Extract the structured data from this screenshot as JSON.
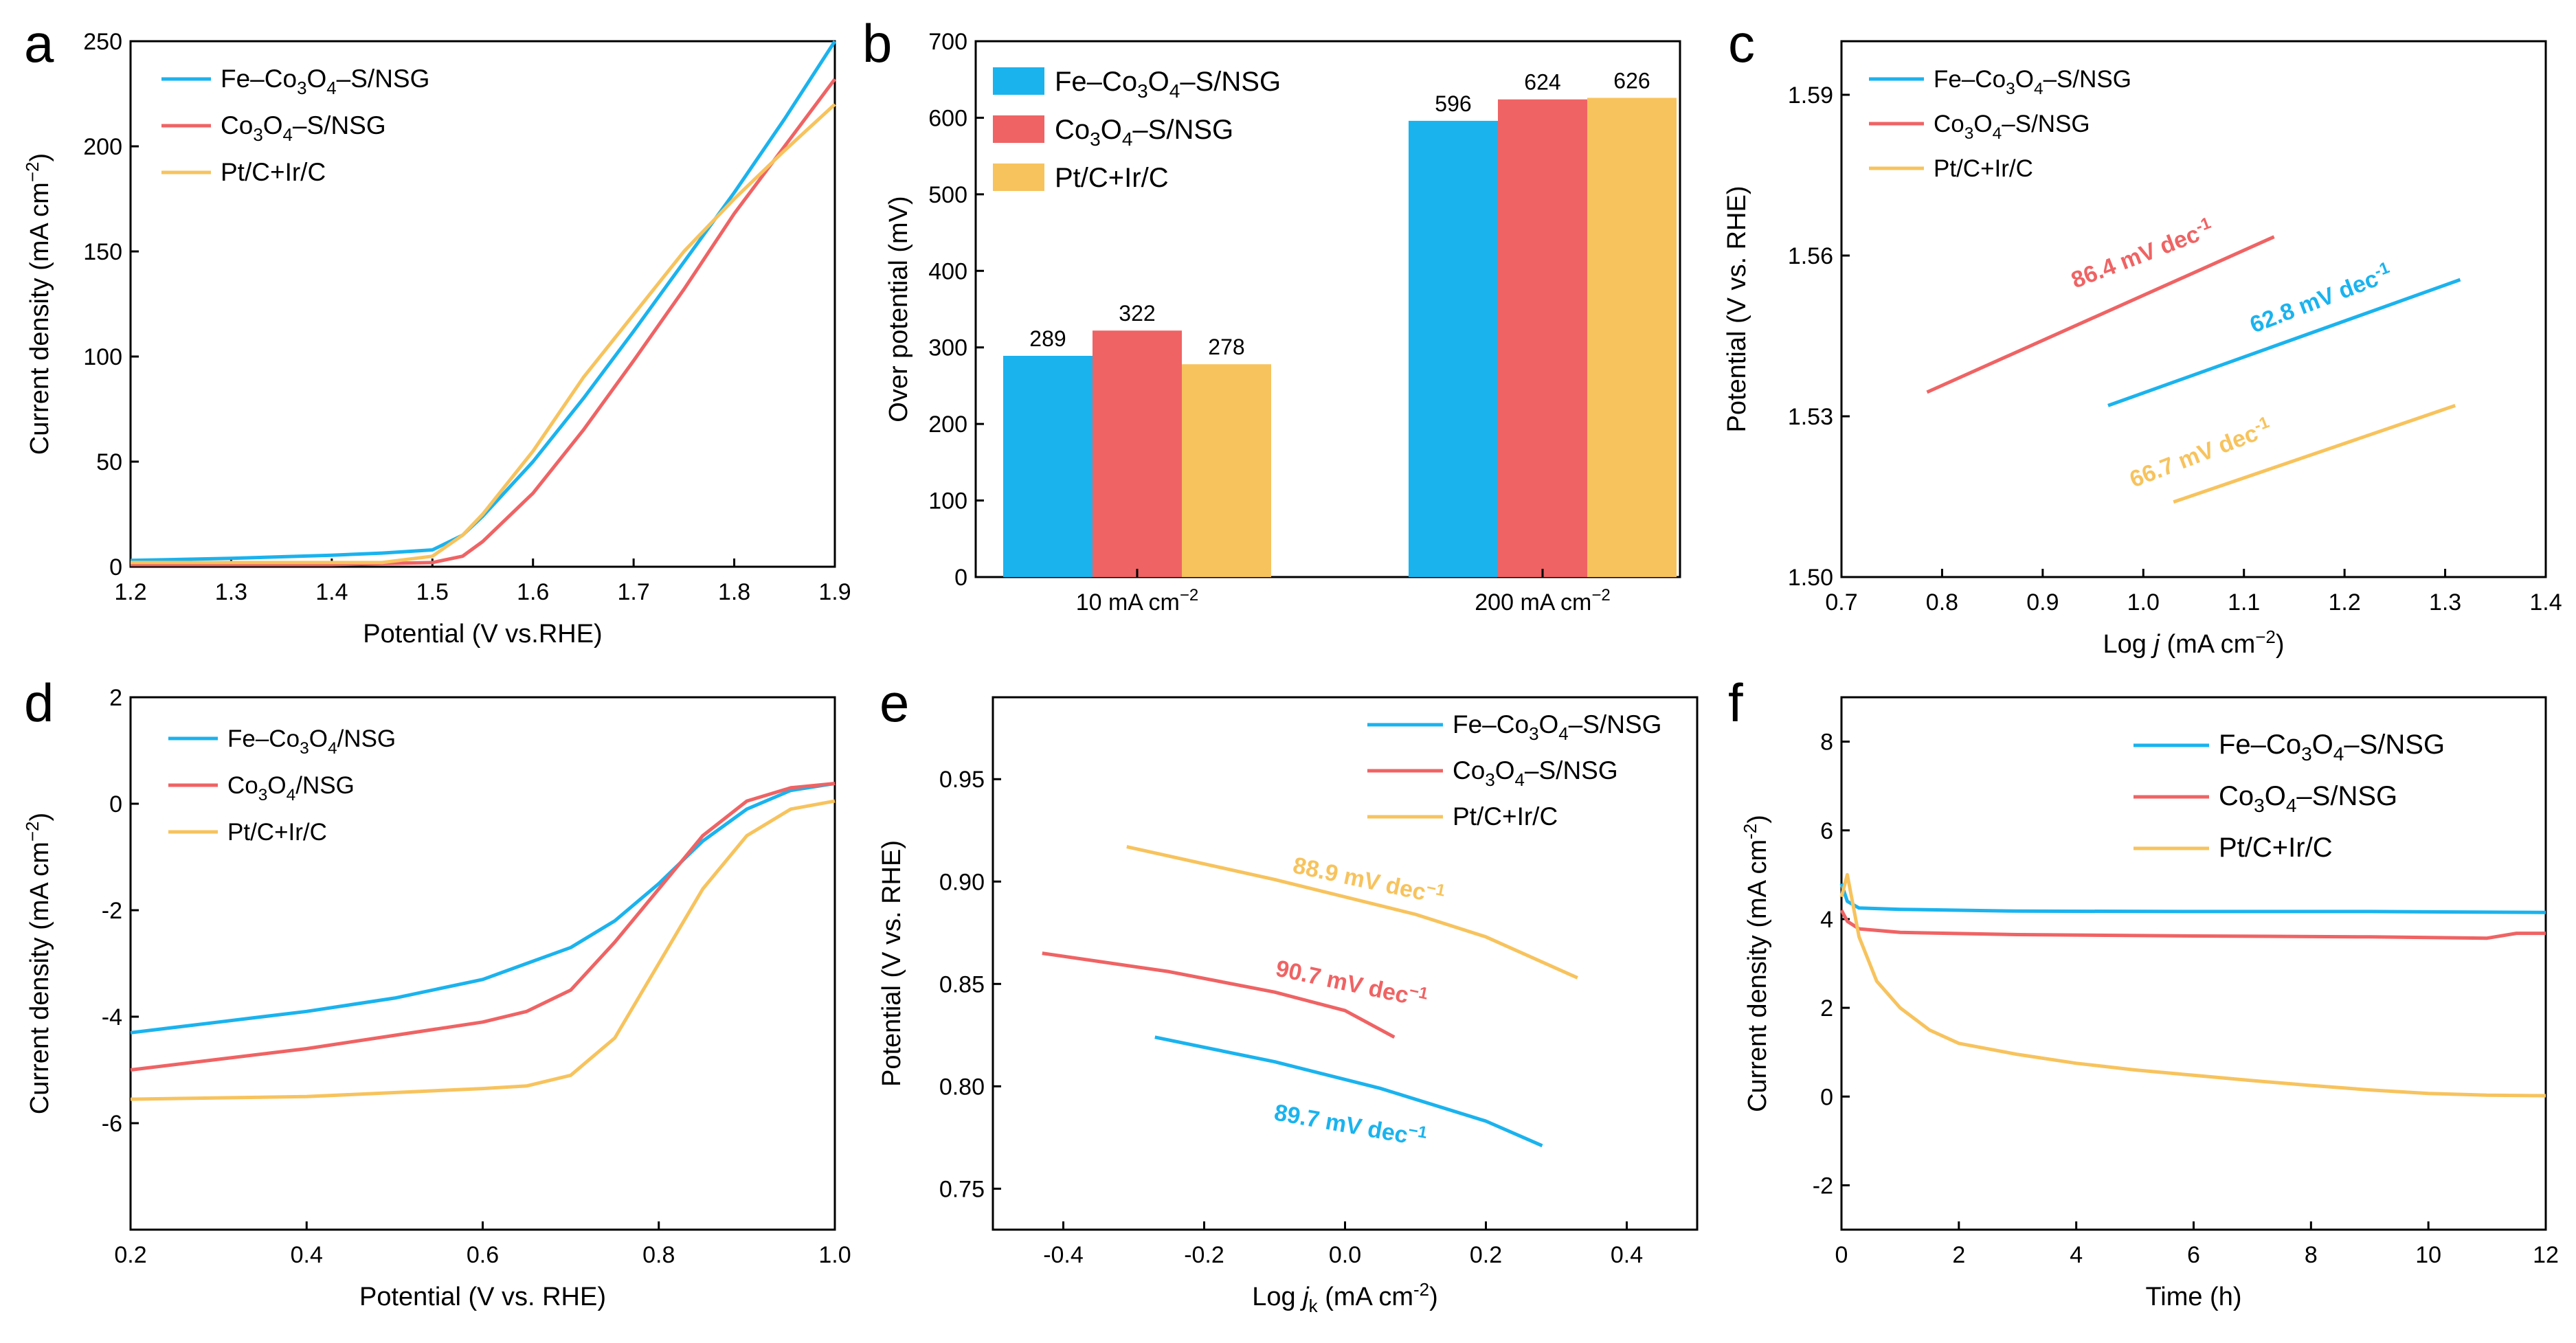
{
  "colors": {
    "fe": "#1ab3ee",
    "co": "#ef6364",
    "pt": "#f7c35d",
    "axis": "#000000"
  },
  "chart_data": [
    {
      "panel": "a",
      "type": "line",
      "xlabel": "Potential (V vs.RHE)",
      "ylabel": "Current density (mA cm",
      "ylabel_sup": "−2",
      "ylabel_end": ")",
      "xlim": [
        1.2,
        1.9
      ],
      "ylim": [
        0,
        250
      ],
      "xticks": [
        "1.2",
        "1.3",
        "1.4",
        "1.5",
        "1.6",
        "1.7",
        "1.8",
        "1.9"
      ],
      "yticks": [
        "0",
        "50",
        "100",
        "150",
        "200",
        "250"
      ],
      "legend_position": "top-left",
      "series": [
        {
          "name": "Fe–Co3O4–S/NSG",
          "color": "fe",
          "label": {
            "p": "Fe–Co",
            "s1": "3",
            "m": "O",
            "s2": "4",
            "e": "–S/NSG"
          },
          "points": [
            [
              1.2,
              3
            ],
            [
              1.3,
              4
            ],
            [
              1.4,
              5.5
            ],
            [
              1.45,
              6.5
            ],
            [
              1.5,
              8
            ],
            [
              1.53,
              15
            ],
            [
              1.55,
              24
            ],
            [
              1.6,
              50
            ],
            [
              1.65,
              80
            ],
            [
              1.7,
              112
            ],
            [
              1.75,
              145
            ],
            [
              1.8,
              178
            ],
            [
              1.85,
              213
            ],
            [
              1.9,
              250
            ]
          ]
        },
        {
          "name": "Co3O4–S/NSG",
          "color": "co",
          "label": {
            "p": "Co",
            "s1": "3",
            "m": "O",
            "s2": "4",
            "e": "–S/NSG"
          },
          "points": [
            [
              1.2,
              1
            ],
            [
              1.3,
              1
            ],
            [
              1.4,
              1
            ],
            [
              1.45,
              1.5
            ],
            [
              1.5,
              2
            ],
            [
              1.53,
              5
            ],
            [
              1.55,
              12
            ],
            [
              1.6,
              35
            ],
            [
              1.65,
              65
            ],
            [
              1.7,
              98
            ],
            [
              1.75,
              132
            ],
            [
              1.8,
              168
            ],
            [
              1.85,
              200
            ],
            [
              1.9,
              232
            ]
          ]
        },
        {
          "name": "Pt/C+Ir/C",
          "color": "pt",
          "label": {
            "p": "Pt/C+Ir/C",
            "s1": "",
            "m": "",
            "s2": "",
            "e": ""
          },
          "points": [
            [
              1.2,
              2
            ],
            [
              1.3,
              2
            ],
            [
              1.4,
              2
            ],
            [
              1.45,
              2
            ],
            [
              1.5,
              5
            ],
            [
              1.53,
              15
            ],
            [
              1.55,
              25
            ],
            [
              1.6,
              55
            ],
            [
              1.65,
              90
            ],
            [
              1.7,
              120
            ],
            [
              1.75,
              150
            ],
            [
              1.8,
              175
            ],
            [
              1.85,
              198
            ],
            [
              1.9,
              220
            ]
          ]
        }
      ]
    },
    {
      "panel": "b",
      "type": "bar",
      "xlabel": "",
      "ylabel": "Over potential (mV)",
      "ylim": [
        0,
        700
      ],
      "yticks": [
        "0",
        "100",
        "200",
        "300",
        "400",
        "500",
        "600",
        "700"
      ],
      "categories": [
        {
          "p": "10 mA cm",
          "sup": "−2"
        },
        {
          "p": "200 mA cm",
          "sup": "−2"
        }
      ],
      "legend_position": "top-left",
      "series": [
        {
          "name": "Fe–Co3O4–S/NSG",
          "color": "fe",
          "label": {
            "p": "Fe–Co",
            "s1": "3",
            "m": "O",
            "s2": "4",
            "e": "–S/NSG"
          },
          "values": [
            289,
            596
          ],
          "value_labels": [
            "289",
            "596"
          ]
        },
        {
          "name": "Co3O4–S/NSG",
          "color": "co",
          "label": {
            "p": "Co",
            "s1": "3",
            "m": "O",
            "s2": "4",
            "e": "–S/NSG"
          },
          "values": [
            322,
            624
          ],
          "value_labels": [
            "322",
            "624"
          ]
        },
        {
          "name": "Pt/C+Ir/C",
          "color": "pt",
          "label": {
            "p": "Pt/C+Ir/C",
            "s1": "",
            "m": "",
            "s2": "",
            "e": ""
          },
          "values": [
            278,
            626
          ],
          "value_labels": [
            "278",
            "626"
          ]
        }
      ]
    },
    {
      "panel": "c",
      "type": "line",
      "xlabel": "Log ",
      "xlabel_italic": "j",
      "xlabel_end": " (mA cm",
      "xlabel_sup": "−2",
      "xlabel_close": ")",
      "ylabel": "Potential (V vs. RHE)",
      "xlim": [
        0.7,
        1.4
      ],
      "ylim": [
        1.5,
        1.6
      ],
      "xticks": [
        "0.7",
        "0.8",
        "0.9",
        "1.0",
        "1.1",
        "1.2",
        "1.3",
        "1.4"
      ],
      "yticks": [
        "1.50",
        "1.53",
        "1.56",
        "1.59"
      ],
      "legend_position": "top-left",
      "series": [
        {
          "name": "Fe–Co3O4–S/NSG",
          "color": "fe",
          "label": {
            "p": "Fe–Co",
            "s1": "3",
            "m": "O",
            "s2": "4",
            "e": "–S/NSG"
          },
          "points": [
            [
              0.965,
              1.532
            ],
            [
              1.315,
              1.5555
            ]
          ],
          "slope": {
            "p": "62.8 mV dec",
            "sup": "-1"
          }
        },
        {
          "name": "Co3O4–S/NSG",
          "color": "co",
          "label": {
            "p": "Co",
            "s1": "3",
            "m": "O",
            "s2": "4",
            "e": "–S/NSG"
          },
          "points": [
            [
              0.785,
              1.5345
            ],
            [
              1.13,
              1.5635
            ]
          ],
          "slope": {
            "p": "86.4 mV dec",
            "sup": "-1"
          }
        },
        {
          "name": "Pt/C+Ir/C",
          "color": "pt",
          "label": {
            "p": "Pt/C+Ir/C",
            "s1": "",
            "m": "",
            "s2": "",
            "e": ""
          },
          "points": [
            [
              1.03,
              1.514
            ],
            [
              1.31,
              1.532
            ]
          ],
          "slope": {
            "p": "66.7 mV dec",
            "sup": "-1"
          }
        }
      ]
    },
    {
      "panel": "d",
      "type": "line",
      "xlabel": "Potential (V vs. RHE)",
      "ylabel": "Current density (mA cm",
      "ylabel_sup": "−2",
      "ylabel_end": ")",
      "xlim": [
        0.2,
        1.0
      ],
      "ylim": [
        -8,
        2
      ],
      "xticks": [
        "0.2",
        "0.4",
        "0.6",
        "0.8",
        "1.0"
      ],
      "yticks": [
        "-6",
        "-4",
        "-2",
        "0",
        "2"
      ],
      "legend_position": "top-left",
      "series": [
        {
          "name": "Fe–Co3O4/NSG",
          "color": "fe",
          "label": {
            "p": "Fe–Co",
            "s1": "3",
            "m": "O",
            "s2": "4",
            "e": "/NSG"
          },
          "points": [
            [
              0.2,
              -4.3
            ],
            [
              0.3,
              -4.1
            ],
            [
              0.4,
              -3.9
            ],
            [
              0.5,
              -3.65
            ],
            [
              0.6,
              -3.3
            ],
            [
              0.65,
              -3.0
            ],
            [
              0.7,
              -2.7
            ],
            [
              0.75,
              -2.2
            ],
            [
              0.8,
              -1.5
            ],
            [
              0.85,
              -0.7
            ],
            [
              0.9,
              -0.1
            ],
            [
              0.95,
              0.25
            ],
            [
              1.0,
              0.38
            ]
          ]
        },
        {
          "name": "Co3O4/NSG",
          "color": "co",
          "label": {
            "p": "Co",
            "s1": "3",
            "m": "O",
            "s2": "4",
            "e": "/NSG"
          },
          "points": [
            [
              0.2,
              -5.0
            ],
            [
              0.3,
              -4.8
            ],
            [
              0.4,
              -4.6
            ],
            [
              0.5,
              -4.35
            ],
            [
              0.6,
              -4.1
            ],
            [
              0.65,
              -3.9
            ],
            [
              0.7,
              -3.5
            ],
            [
              0.75,
              -2.6
            ],
            [
              0.8,
              -1.6
            ],
            [
              0.85,
              -0.6
            ],
            [
              0.9,
              0.05
            ],
            [
              0.95,
              0.3
            ],
            [
              1.0,
              0.38
            ]
          ]
        },
        {
          "name": "Pt/C+Ir/C",
          "color": "pt",
          "label": {
            "p": "Pt/C+Ir/C",
            "s1": "",
            "m": "",
            "s2": "",
            "e": ""
          },
          "points": [
            [
              0.2,
              -5.55
            ],
            [
              0.4,
              -5.5
            ],
            [
              0.6,
              -5.35
            ],
            [
              0.65,
              -5.3
            ],
            [
              0.7,
              -5.1
            ],
            [
              0.75,
              -4.4
            ],
            [
              0.8,
              -3.0
            ],
            [
              0.85,
              -1.6
            ],
            [
              0.9,
              -0.6
            ],
            [
              0.95,
              -0.1
            ],
            [
              1.0,
              0.05
            ]
          ]
        }
      ]
    },
    {
      "panel": "e",
      "type": "line",
      "xlabel": "Log ",
      "xlabel_italic": "j",
      "xlabel_sub": "k",
      "xlabel_end": " (mA cm",
      "xlabel_sup": "-2",
      "xlabel_close": ")",
      "ylabel": "Potential (V vs. RHE)",
      "xlim": [
        -0.5,
        0.5
      ],
      "ylim": [
        0.73,
        0.99
      ],
      "xticks": [
        "-0.4",
        "-0.2",
        "0.0",
        "0.2",
        "0.4"
      ],
      "yticks": [
        "0.75",
        "0.80",
        "0.85",
        "0.90",
        "0.95"
      ],
      "legend_position": "top-right",
      "series": [
        {
          "name": "Fe–Co3O4–S/NSG",
          "color": "fe",
          "label": {
            "p": "Fe–Co",
            "s1": "3",
            "m": "O",
            "s2": "4",
            "e": "–S/NSG"
          },
          "points": [
            [
              -0.27,
              0.824
            ],
            [
              -0.1,
              0.812
            ],
            [
              0.05,
              0.799
            ],
            [
              0.2,
              0.783
            ],
            [
              0.28,
              0.771
            ]
          ],
          "slope": {
            "p": "89.7 mV dec",
            "sup": "−1"
          }
        },
        {
          "name": "Co3O4–S/NSG",
          "color": "co",
          "label": {
            "p": "Co",
            "s1": "3",
            "m": "O",
            "s2": "4",
            "e": "–S/NSG"
          },
          "points": [
            [
              -0.43,
              0.865
            ],
            [
              -0.25,
              0.856
            ],
            [
              -0.1,
              0.846
            ],
            [
              0.0,
              0.837
            ],
            [
              0.07,
              0.824
            ]
          ],
          "slope": {
            "p": "90.7 mV dec",
            "sup": "−1"
          }
        },
        {
          "name": "Pt/C+Ir/C",
          "color": "pt",
          "label": {
            "p": "Pt/C+Ir/C",
            "s1": "",
            "m": "",
            "s2": "",
            "e": ""
          },
          "points": [
            [
              -0.31,
              0.917
            ],
            [
              -0.1,
              0.901
            ],
            [
              0.1,
              0.884
            ],
            [
              0.2,
              0.873
            ],
            [
              0.33,
              0.853
            ]
          ],
          "slope": {
            "p": "88.9 mV dec",
            "sup": "−1"
          }
        }
      ]
    },
    {
      "panel": "f",
      "type": "line",
      "xlabel": "Time (h)",
      "ylabel": "Current density (mA cm",
      "ylabel_sup": "-2",
      "ylabel_end": ")",
      "xlim": [
        0,
        12
      ],
      "ylim": [
        -3,
        9
      ],
      "xticks": [
        "0",
        "2",
        "4",
        "6",
        "8",
        "10",
        "12"
      ],
      "yticks": [
        "-2",
        "0",
        "2",
        "4",
        "6",
        "8"
      ],
      "legend_position": "top-right",
      "series": [
        {
          "name": "Fe–Co3O4–S/NSG",
          "color": "fe",
          "label": {
            "p": "Fe–Co",
            "s1": "3",
            "m": "O",
            "s2": "4",
            "e": "–S/NSG"
          },
          "points": [
            [
              0,
              4.8
            ],
            [
              0.1,
              4.4
            ],
            [
              0.3,
              4.25
            ],
            [
              1,
              4.22
            ],
            [
              3,
              4.18
            ],
            [
              6,
              4.17
            ],
            [
              9,
              4.17
            ],
            [
              12,
              4.15
            ]
          ]
        },
        {
          "name": "Co3O4–S/NSG",
          "color": "co",
          "label": {
            "p": "Co",
            "s1": "3",
            "m": "O",
            "s2": "4",
            "e": "–S/NSG"
          },
          "points": [
            [
              0,
              4.2
            ],
            [
              0.1,
              3.95
            ],
            [
              0.3,
              3.78
            ],
            [
              1,
              3.7
            ],
            [
              3,
              3.65
            ],
            [
              6,
              3.62
            ],
            [
              9,
              3.6
            ],
            [
              11,
              3.57
            ],
            [
              11.5,
              3.68
            ],
            [
              12,
              3.68
            ]
          ]
        },
        {
          "name": "Pt/C+Ir/C",
          "color": "pt",
          "label": {
            "p": "Pt/C+Ir/C",
            "s1": "",
            "m": "",
            "s2": "",
            "e": ""
          },
          "points": [
            [
              0,
              4.5
            ],
            [
              0.1,
              5.0
            ],
            [
              0.3,
              3.6
            ],
            [
              0.6,
              2.6
            ],
            [
              1,
              2.0
            ],
            [
              1.5,
              1.5
            ],
            [
              2,
              1.2
            ],
            [
              3,
              0.95
            ],
            [
              4,
              0.75
            ],
            [
              5,
              0.6
            ],
            [
              6,
              0.48
            ],
            [
              7,
              0.36
            ],
            [
              8,
              0.25
            ],
            [
              9,
              0.15
            ],
            [
              10,
              0.07
            ],
            [
              11,
              0.03
            ],
            [
              12,
              0.02
            ]
          ]
        }
      ]
    }
  ]
}
